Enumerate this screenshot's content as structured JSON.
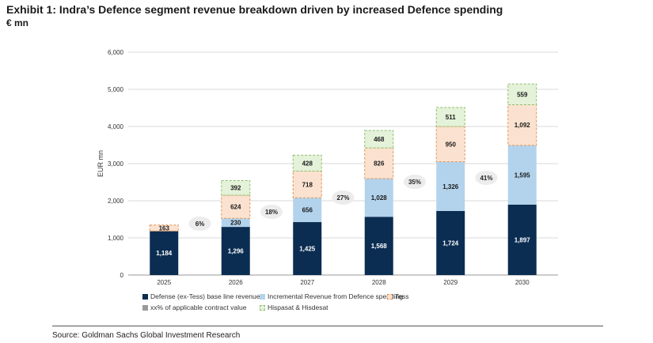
{
  "title": "Exhibit 1: Indra’s Defence segment revenue breakdown driven by increased Defence spending",
  "subtitle": "€ mn",
  "source": "Source: Goldman Sachs Global Investment Research",
  "chart_data": {
    "type": "bar",
    "stacked": true,
    "categories": [
      "2025",
      "2026",
      "2027",
      "2028",
      "2029",
      "2030"
    ],
    "ylabel": "EUR mn",
    "ylim": [
      0,
      6000
    ],
    "yticks": [
      "0",
      "1,000",
      "2,000",
      "3,000",
      "4,000",
      "5,000",
      "6,000"
    ],
    "grid": true,
    "legend_position": "bottom",
    "series": [
      {
        "name": "Defense (ex-Tess) base line revenue",
        "values": [
          1184,
          1296,
          1425,
          1568,
          1724,
          1897
        ],
        "labels": [
          "1,184",
          "1,296",
          "1,425",
          "1,568",
          "1,724",
          "1,897"
        ],
        "color": "#0b2d52",
        "label_color": "#ffffff",
        "dashed": false
      },
      {
        "name": "Incremental Revenue from Defence spending",
        "values": [
          0,
          230,
          656,
          1028,
          1326,
          1595
        ],
        "labels": [
          "",
          "230",
          "656",
          "1,028",
          "1,326",
          "1,595"
        ],
        "color": "#b3d3ec",
        "label_color": "#1a1a1a",
        "dashed": false
      },
      {
        "name": "Tess",
        "values": [
          163,
          624,
          718,
          826,
          950,
          1092
        ],
        "labels": [
          "163",
          "624",
          "718",
          "826",
          "950",
          "1,092"
        ],
        "color": "#fbe2d0",
        "stroke": "#e0955c",
        "label_color": "#1a1a1a",
        "dashed": true
      },
      {
        "name": "Hispasat & Hisdesat",
        "values": [
          0,
          392,
          428,
          468,
          511,
          559
        ],
        "labels": [
          "",
          "392",
          "428",
          "468",
          "511",
          "559"
        ],
        "color": "#e4f2d9",
        "stroke": "#8fbf6e",
        "label_color": "#1a1a1a",
        "dashed": true
      }
    ],
    "extra_legend": {
      "name": "xx% of applicable contract value",
      "color": "#9a9a9a"
    },
    "percent_annotations": [
      "6%",
      "18%",
      "27%",
      "35%",
      "41%"
    ]
  }
}
